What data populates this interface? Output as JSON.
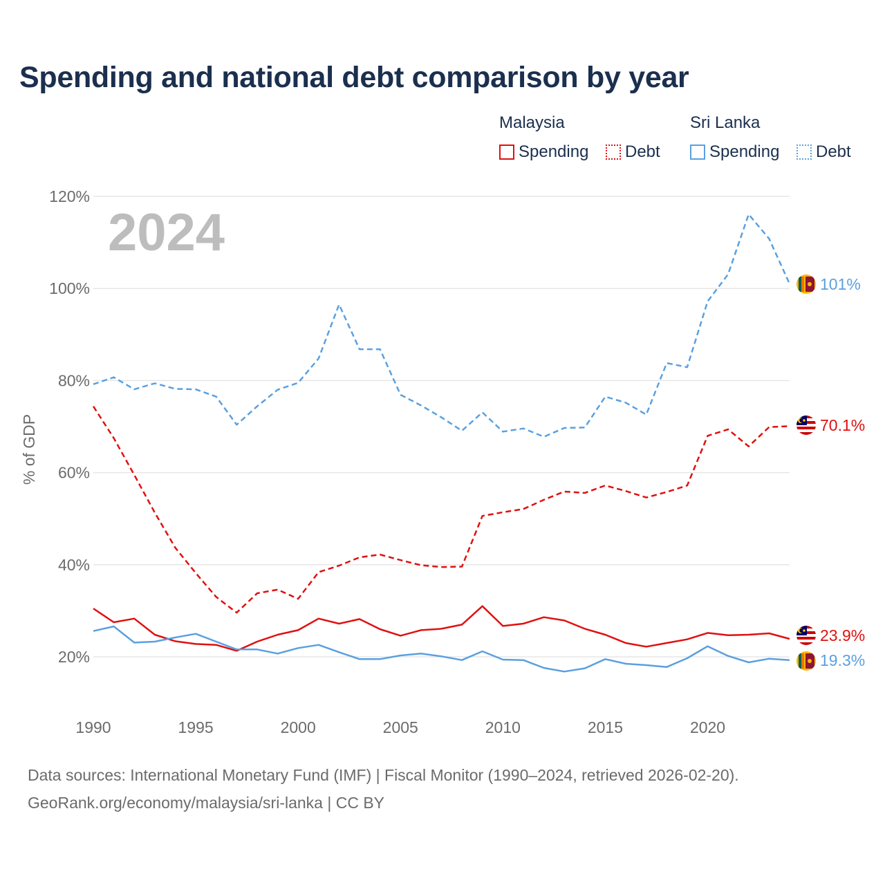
{
  "title": "Spending and national debt comparison by year",
  "legend": {
    "groups": [
      {
        "name": "Malaysia",
        "color": "#e01010",
        "items": [
          {
            "label": "Spending",
            "style": "solid"
          },
          {
            "label": "Debt",
            "style": "dotted"
          }
        ]
      },
      {
        "name": "Sri Lanka",
        "color": "#5aa0e0",
        "items": [
          {
            "label": "Spending",
            "style": "solid"
          },
          {
            "label": "Debt",
            "style": "dotted"
          }
        ]
      }
    ]
  },
  "footer": {
    "line1": "Data sources: International Monetary Fund (IMF) | Fiscal Monitor (1990–2024, retrieved 2026-02-20).",
    "line2": "GeoRank.org/economy/malaysia/sri-lanka | CC BY"
  },
  "chart_data": {
    "type": "line",
    "year_label": "2024",
    "ylabel": "% of GDP",
    "xlim": [
      1990,
      2024
    ],
    "ylim": [
      10,
      120
    ],
    "xticks": [
      1990,
      1995,
      2000,
      2005,
      2010,
      2015,
      2020
    ],
    "xtick_labels": [
      "1990",
      "1995",
      "2000",
      "2005",
      "2010",
      "2015",
      "2020"
    ],
    "yticks": [
      20,
      40,
      60,
      80,
      100,
      120
    ],
    "ytick_labels": [
      "20%",
      "40%",
      "60%",
      "80%",
      "100%",
      "120%"
    ],
    "grid": true,
    "x": [
      1990,
      1991,
      1992,
      1993,
      1994,
      1995,
      1996,
      1997,
      1998,
      1999,
      2000,
      2001,
      2002,
      2003,
      2004,
      2005,
      2006,
      2007,
      2008,
      2009,
      2010,
      2011,
      2012,
      2013,
      2014,
      2015,
      2016,
      2017,
      2018,
      2019,
      2020,
      2021,
      2022,
      2023,
      2024
    ],
    "series": [
      {
        "name": "Sri Lanka Debt",
        "country": "Sri Lanka",
        "measure": "Debt",
        "color": "#5aa0e0",
        "dashed": true,
        "end_label": "101%",
        "flag": "sri-lanka-flag-icon",
        "values": [
          79.2,
          80.7,
          78.1,
          79.4,
          78.2,
          78.1,
          76.5,
          70.4,
          74.4,
          78.0,
          79.5,
          84.8,
          96.5,
          86.8,
          86.8,
          76.9,
          74.6,
          72.0,
          69.1,
          73.1,
          68.9,
          69.6,
          67.8,
          69.7,
          69.8,
          76.5,
          75.2,
          72.6,
          83.8,
          82.9,
          97.2,
          103.1,
          116.1,
          110.8,
          101.0
        ]
      },
      {
        "name": "Malaysia Debt",
        "country": "Malaysia",
        "measure": "Debt",
        "color": "#e01010",
        "dashed": true,
        "end_label": "70.1%",
        "flag": "malaysia-flag-icon",
        "values": [
          74.4,
          67.5,
          59.5,
          51.3,
          43.7,
          38.2,
          33.0,
          29.6,
          33.8,
          34.6,
          32.6,
          38.4,
          39.8,
          41.6,
          42.2,
          41.0,
          39.9,
          39.5,
          39.6,
          50.6,
          51.4,
          52.1,
          54.1,
          55.9,
          55.6,
          57.2,
          56.0,
          54.6,
          55.8,
          57.2,
          68.0,
          69.4,
          65.7,
          69.9,
          70.1
        ]
      },
      {
        "name": "Malaysia Spending",
        "country": "Malaysia",
        "measure": "Spending",
        "color": "#e01010",
        "dashed": false,
        "end_label": "23.9%",
        "flag": "malaysia-flag-icon",
        "values": [
          30.5,
          27.5,
          28.3,
          24.8,
          23.4,
          22.8,
          22.6,
          21.3,
          23.3,
          24.8,
          25.8,
          28.3,
          27.2,
          28.2,
          26.0,
          24.6,
          25.8,
          26.1,
          27.0,
          31.0,
          26.7,
          27.2,
          28.6,
          27.9,
          26.1,
          24.8,
          23.0,
          22.2,
          23.0,
          23.8,
          25.2,
          24.7,
          24.8,
          25.1,
          23.9
        ]
      },
      {
        "name": "Sri Lanka Spending",
        "country": "Sri Lanka",
        "measure": "Spending",
        "color": "#5aa0e0",
        "dashed": false,
        "end_label": "19.3%",
        "flag": "sri-lanka-flag-icon",
        "values": [
          25.6,
          26.6,
          23.1,
          23.3,
          24.2,
          25.0,
          23.3,
          21.6,
          21.6,
          20.7,
          21.9,
          22.6,
          21.0,
          19.5,
          19.5,
          20.3,
          20.7,
          20.1,
          19.3,
          21.2,
          19.4,
          19.3,
          17.6,
          16.8,
          17.5,
          19.5,
          18.5,
          18.2,
          17.8,
          19.7,
          22.3,
          20.2,
          18.8,
          19.6,
          19.3
        ]
      }
    ]
  }
}
